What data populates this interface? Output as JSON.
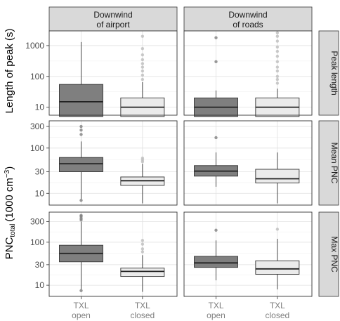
{
  "chart_data": {
    "type": "box",
    "facet_columns": [
      "Downwind\nof airport",
      "Downwind\nof roads"
    ],
    "facet_rows": [
      {
        "strip": "Peak length",
        "ylabel": "Length of peak (s)",
        "yscale": "log",
        "ylim": [
          5.5,
          3000
        ],
        "yticks": [
          10,
          100,
          1000
        ],
        "ytick_labels": [
          "10",
          "100",
          "1000"
        ]
      },
      {
        "strip": "Mean PNC",
        "yscale": "log",
        "ylim": [
          5.5,
          400
        ],
        "yticks": [
          10,
          30,
          100,
          300
        ],
        "ytick_labels": [
          "10",
          "30",
          "100",
          "300"
        ]
      },
      {
        "strip": "Max PNC",
        "yscale": "log",
        "ylim": [
          5.5,
          500
        ],
        "yticks": [
          10,
          30,
          100,
          300
        ],
        "ytick_labels": [
          "10",
          "30",
          "100",
          "300"
        ]
      }
    ],
    "ylabel_mean_max": {
      "prefix": "PNC",
      "subscript": "total",
      "units": "(1000 cm",
      "superscript": "−3",
      "close": ")"
    },
    "categories": [
      "TXL\nopen",
      "TXL\nclosed"
    ],
    "box_fills": [
      "#7f7f7f",
      "#ebebeb"
    ],
    "boxes": [
      [
        [
          {
            "min": 5,
            "q1": 5,
            "median": 15,
            "q3": 55,
            "max": 1300,
            "outliers": []
          },
          {
            "min": 5,
            "q1": 5,
            "median": 10,
            "q3": 20,
            "max": 65,
            "outliers": [
              80,
              110,
              150,
              200,
              260,
              350,
              500,
              800,
              2000
            ]
          }
        ],
        [
          {
            "min": 5,
            "q1": 5,
            "median": 10,
            "q3": 20,
            "max": 35,
            "outliers": [
              300,
              1800
            ]
          },
          {
            "min": 5,
            "q1": 5,
            "median": 10,
            "q3": 20,
            "max": 40,
            "outliers": [
              60,
              80,
              100,
              150,
              200,
              300,
              450,
              650,
              900,
              1400,
              2000,
              2600
            ]
          }
        ]
      ],
      [
        [
          {
            "min": 7.5,
            "q1": 30,
            "median": 45,
            "q3": 62,
            "max": 140,
            "outliers": [
              200,
              250,
              300,
              7
            ]
          },
          {
            "min": 6,
            "q1": 15,
            "median": 19,
            "q3": 23,
            "max": 45,
            "outliers": [
              50,
              55,
              60
            ]
          }
        ],
        [
          {
            "min": 14,
            "q1": 24,
            "median": 31,
            "q3": 41,
            "max": 80,
            "outliers": [
              170
            ]
          },
          {
            "min": 6,
            "q1": 17,
            "median": 21,
            "q3": 34,
            "max": 80,
            "outliers": []
          }
        ]
      ],
      [
        [
          {
            "min": 8,
            "q1": 35,
            "median": 55,
            "q3": 85,
            "max": 300,
            "outliers": [
              330,
              360,
              400,
              420,
              7.5
            ]
          },
          {
            "min": 7,
            "q1": 16,
            "median": 21,
            "q3": 25,
            "max": 50,
            "outliers": [
              60,
              70,
              90,
              110
            ]
          }
        ],
        [
          {
            "min": 13,
            "q1": 26,
            "median": 33,
            "q3": 47,
            "max": 110,
            "outliers": [
              190
            ]
          },
          {
            "min": 8,
            "q1": 18,
            "median": 24,
            "q3": 37,
            "max": 120,
            "outliers": [
              200
            ]
          }
        ]
      ]
    ]
  }
}
